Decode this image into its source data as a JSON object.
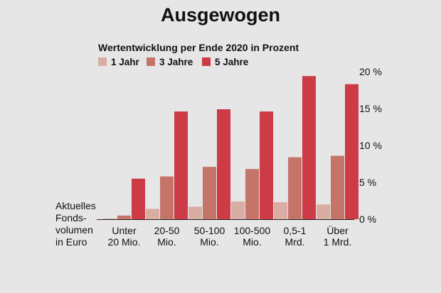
{
  "chart_data": {
    "type": "bar",
    "title": "Ausgewogen",
    "subtitle": "Wertentwicklung per Ende 2020 in Prozent",
    "xlabel": [
      "Aktuelles",
      "Fonds-",
      "volumen",
      "in Euro"
    ],
    "categories": [
      [
        "Unter",
        "20 Mio."
      ],
      [
        "20-50",
        "Mio."
      ],
      [
        "50-100",
        "Mio."
      ],
      [
        "100-500",
        "Mio."
      ],
      [
        "0,5-1",
        "Mrd."
      ],
      [
        "Über",
        "1 Mrd."
      ]
    ],
    "series": [
      {
        "name": "1 Jahr",
        "color": "#d9aca4",
        "values": [
          0.1,
          1.4,
          1.7,
          2.4,
          2.3,
          2.0
        ]
      },
      {
        "name": "3 Jahre",
        "color": "#c47568",
        "values": [
          0.5,
          5.8,
          7.1,
          6.8,
          8.4,
          8.6
        ]
      },
      {
        "name": "5 Jahre",
        "color": "#cc3b46",
        "values": [
          5.5,
          14.6,
          14.9,
          14.6,
          19.4,
          18.3
        ]
      }
    ],
    "yticks": [
      {
        "value": 0,
        "label": "0 %"
      },
      {
        "value": 5,
        "label": "5 %"
      },
      {
        "value": 10,
        "label": "10 %"
      },
      {
        "value": 15,
        "label": "15 %"
      },
      {
        "value": 20,
        "label": "20 %"
      }
    ],
    "ylim": [
      0,
      20
    ],
    "legend_position": "top-left",
    "grid": false
  }
}
